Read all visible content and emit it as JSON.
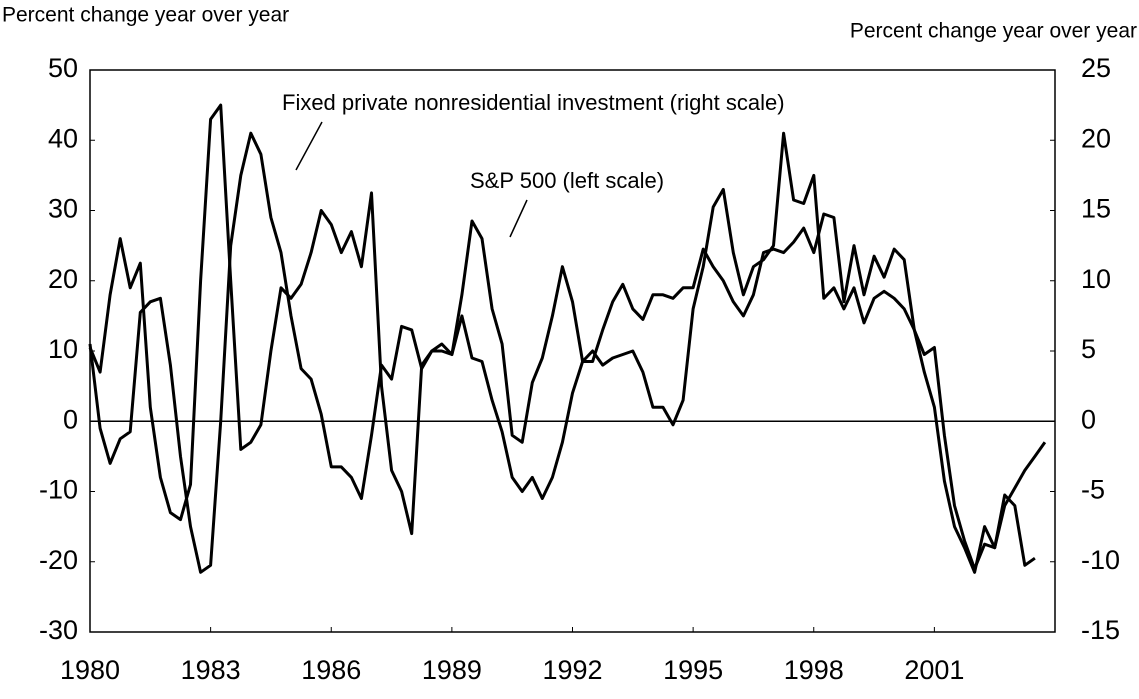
{
  "chart_data": {
    "type": "line",
    "y_label": "Percent change year over year",
    "y2_label": "Percent change year over year",
    "x": [
      1980,
      1980.25,
      1980.5,
      1980.75,
      1981,
      1981.25,
      1981.5,
      1981.75,
      1982,
      1982.25,
      1982.5,
      1982.75,
      1983,
      1983.25,
      1983.5,
      1983.75,
      1984,
      1984.25,
      1984.5,
      1984.75,
      1985,
      1985.25,
      1985.5,
      1985.75,
      1986,
      1986.25,
      1986.5,
      1986.75,
      1987,
      1987.25,
      1987.5,
      1987.75,
      1988,
      1988.25,
      1988.5,
      1988.75,
      1989,
      1989.25,
      1989.5,
      1989.75,
      1990,
      1990.25,
      1990.5,
      1990.75,
      1991,
      1991.25,
      1991.5,
      1991.75,
      1992,
      1992.25,
      1992.5,
      1992.75,
      1993,
      1993.25,
      1993.5,
      1993.75,
      1994,
      1994.25,
      1994.5,
      1994.75,
      1995,
      1995.25,
      1995.5,
      1995.75,
      1996,
      1996.25,
      1996.5,
      1996.75,
      1997,
      1997.25,
      1997.5,
      1997.75,
      1998,
      1998.25,
      1998.5,
      1998.75,
      1999,
      1999.25,
      1999.5,
      1999.75,
      2000,
      2000.25,
      2000.5,
      2000.75,
      2001,
      2001.25,
      2001.5,
      2001.75,
      2002,
      2002.25,
      2002.5,
      2002.75,
      2003,
      2003.25,
      2003.5,
      2003.75
    ],
    "series": [
      {
        "name": "S&P 500 (left scale)",
        "color": "#000000",
        "axis": "y",
        "values": [
          10.5,
          7,
          18,
          26,
          19,
          22.5,
          2,
          -8,
          -13,
          -14,
          -9,
          20,
          43,
          45,
          20,
          -4,
          -3,
          -0.5,
          10,
          19,
          17.5,
          19.5,
          24,
          30,
          28,
          24,
          27,
          22,
          32.5,
          5,
          -7,
          -10,
          -16,
          8,
          10,
          11,
          9.5,
          18,
          28.5,
          26,
          16,
          11,
          -2,
          -3,
          5.5,
          9,
          15,
          22,
          17,
          8.5,
          8.5,
          13,
          17,
          19.5,
          16,
          14.5,
          18,
          18,
          17.5,
          19,
          19,
          24.5,
          22,
          20,
          17,
          15,
          18,
          24,
          24.5,
          24,
          25.5,
          27.5,
          24,
          29.5,
          29,
          17,
          25,
          18,
          23.5,
          20.5,
          24.5,
          23,
          13,
          9.5,
          10.5,
          -2,
          -12,
          -17,
          -21,
          -17.5,
          -18,
          -10.5,
          -12,
          -20.5,
          -19.5,
          null
        ]
      },
      {
        "name": "Fixed private nonresidential investment (right scale)",
        "color": "#000000",
        "axis": "y2",
        "values": [
          5.5,
          -0.5,
          -3,
          -1.25,
          -0.75,
          7.75,
          8.5,
          8.75,
          4,
          -2.5,
          -7.5,
          -10.75,
          -10.25,
          0,
          12.5,
          17.5,
          20.5,
          19,
          14.5,
          12,
          7.5,
          3.75,
          3,
          0.5,
          -3.25,
          -3.25,
          -4,
          -5.5,
          -1,
          4,
          3,
          6.75,
          6.5,
          3.75,
          5,
          5,
          4.75,
          7.5,
          4.5,
          4.25,
          1.5,
          -0.75,
          -4,
          -5,
          -4,
          -5.5,
          -4,
          -1.5,
          2,
          4.25,
          5,
          4,
          4.5,
          4.75,
          5,
          3.5,
          1,
          1,
          -0.25,
          1.5,
          8,
          11,
          15.25,
          16.5,
          12,
          9,
          11,
          11.5,
          12.5,
          20.5,
          15.75,
          15.5,
          17.5,
          8.75,
          9.5,
          8,
          9.5,
          7,
          8.75,
          9.25,
          8.75,
          8,
          6.5,
          3.5,
          1,
          -4.25,
          -7.5,
          -9,
          -10.75,
          -7.5,
          -9,
          -6,
          -4.75,
          -3.5,
          -2.5,
          -1.5
        ]
      }
    ],
    "xlim": [
      1980,
      2004
    ],
    "xticks": [
      1980,
      1983,
      1986,
      1989,
      1992,
      1995,
      1998,
      2001
    ],
    "ylim": [
      -30,
      50
    ],
    "yticks": [
      -30,
      -20,
      -10,
      0,
      10,
      20,
      30,
      40,
      50
    ],
    "y2lim": [
      -15,
      25
    ],
    "y2ticks": [
      -15,
      -10,
      -5,
      0,
      5,
      10,
      15,
      20,
      25
    ],
    "zero_line": true
  }
}
